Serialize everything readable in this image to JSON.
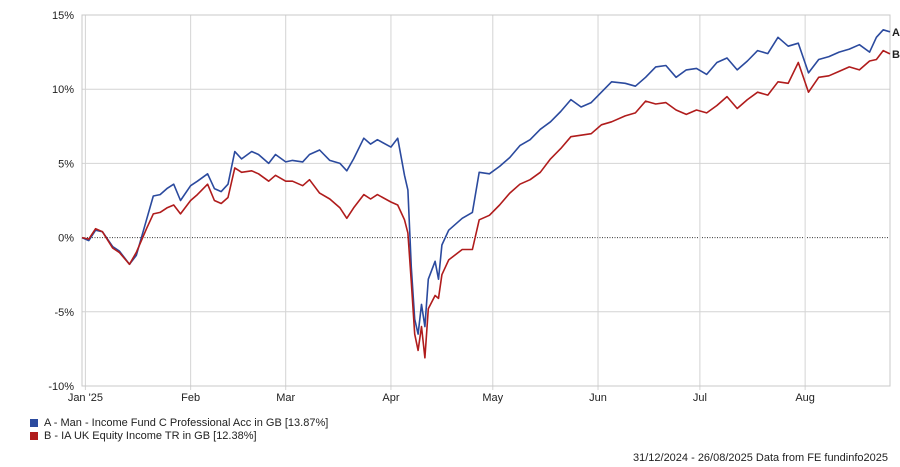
{
  "chart_data": {
    "type": "line",
    "y_ticks": [
      "15%",
      "10%",
      "5%",
      "0%",
      "-5%",
      "-10%"
    ],
    "y_tick_values": [
      15,
      10,
      5,
      0,
      -5,
      -10
    ],
    "ylim": [
      -10,
      15
    ],
    "x_range": [
      "2024-12-31",
      "2025-08-26"
    ],
    "x_ticks": [
      {
        "label": "Jan '25",
        "date": "2025-01-01"
      },
      {
        "label": "Feb",
        "date": "2025-02-01"
      },
      {
        "label": "Mar",
        "date": "2025-03-01"
      },
      {
        "label": "Apr",
        "date": "2025-04-01"
      },
      {
        "label": "May",
        "date": "2025-05-01"
      },
      {
        "label": "Jun",
        "date": "2025-06-01"
      },
      {
        "label": "Jul",
        "date": "2025-07-01"
      },
      {
        "label": "Aug",
        "date": "2025-08-01"
      }
    ],
    "grid": true,
    "zero_line": "dotted",
    "series": [
      {
        "name": "A - Man - Income Fund C Professional Acc in GB [13.87%]",
        "marker": "A",
        "color": "#2b4a9e",
        "points": [
          [
            "2024-12-31",
            0.0
          ],
          [
            "2025-01-02",
            -0.2
          ],
          [
            "2025-01-04",
            0.5
          ],
          [
            "2025-01-06",
            0.4
          ],
          [
            "2025-01-09",
            -0.6
          ],
          [
            "2025-01-11",
            -0.9
          ],
          [
            "2025-01-14",
            -1.8
          ],
          [
            "2025-01-16",
            -1.2
          ],
          [
            "2025-01-19",
            1.2
          ],
          [
            "2025-01-21",
            2.8
          ],
          [
            "2025-01-23",
            2.9
          ],
          [
            "2025-01-25",
            3.3
          ],
          [
            "2025-01-27",
            3.6
          ],
          [
            "2025-01-29",
            2.5
          ],
          [
            "2025-02-01",
            3.5
          ],
          [
            "2025-02-03",
            3.8
          ],
          [
            "2025-02-06",
            4.3
          ],
          [
            "2025-02-08",
            3.3
          ],
          [
            "2025-02-10",
            3.1
          ],
          [
            "2025-02-12",
            3.6
          ],
          [
            "2025-02-14",
            5.8
          ],
          [
            "2025-02-16",
            5.3
          ],
          [
            "2025-02-19",
            5.8
          ],
          [
            "2025-02-21",
            5.6
          ],
          [
            "2025-02-24",
            5.0
          ],
          [
            "2025-02-26",
            5.6
          ],
          [
            "2025-03-01",
            5.1
          ],
          [
            "2025-03-03",
            5.2
          ],
          [
            "2025-03-06",
            5.1
          ],
          [
            "2025-03-08",
            5.6
          ],
          [
            "2025-03-11",
            5.9
          ],
          [
            "2025-03-14",
            5.2
          ],
          [
            "2025-03-17",
            5.0
          ],
          [
            "2025-03-19",
            4.5
          ],
          [
            "2025-03-21",
            5.3
          ],
          [
            "2025-03-24",
            6.7
          ],
          [
            "2025-03-26",
            6.3
          ],
          [
            "2025-03-28",
            6.6
          ],
          [
            "2025-04-01",
            6.1
          ],
          [
            "2025-04-03",
            6.7
          ],
          [
            "2025-04-05",
            4.2
          ],
          [
            "2025-04-06",
            3.2
          ],
          [
            "2025-04-07",
            -2.0
          ],
          [
            "2025-04-08",
            -5.5
          ],
          [
            "2025-04-09",
            -6.5
          ],
          [
            "2025-04-10",
            -4.5
          ],
          [
            "2025-04-11",
            -6.0
          ],
          [
            "2025-04-12",
            -2.8
          ],
          [
            "2025-04-14",
            -1.6
          ],
          [
            "2025-04-15",
            -2.8
          ],
          [
            "2025-04-16",
            -0.5
          ],
          [
            "2025-04-18",
            0.5
          ],
          [
            "2025-04-22",
            1.3
          ],
          [
            "2025-04-25",
            1.7
          ],
          [
            "2025-04-27",
            4.4
          ],
          [
            "2025-04-30",
            4.3
          ],
          [
            "2025-05-03",
            4.8
          ],
          [
            "2025-05-06",
            5.4
          ],
          [
            "2025-05-09",
            6.2
          ],
          [
            "2025-05-12",
            6.6
          ],
          [
            "2025-05-15",
            7.3
          ],
          [
            "2025-05-18",
            7.8
          ],
          [
            "2025-05-21",
            8.5
          ],
          [
            "2025-05-24",
            9.3
          ],
          [
            "2025-05-27",
            8.8
          ],
          [
            "2025-05-30",
            9.1
          ],
          [
            "2025-06-02",
            9.8
          ],
          [
            "2025-06-05",
            10.5
          ],
          [
            "2025-06-09",
            10.4
          ],
          [
            "2025-06-12",
            10.2
          ],
          [
            "2025-06-15",
            10.8
          ],
          [
            "2025-06-18",
            11.5
          ],
          [
            "2025-06-21",
            11.6
          ],
          [
            "2025-06-24",
            10.8
          ],
          [
            "2025-06-27",
            11.3
          ],
          [
            "2025-06-30",
            11.4
          ],
          [
            "2025-07-03",
            11.0
          ],
          [
            "2025-07-06",
            11.8
          ],
          [
            "2025-07-09",
            12.1
          ],
          [
            "2025-07-12",
            11.3
          ],
          [
            "2025-07-15",
            11.9
          ],
          [
            "2025-07-18",
            12.6
          ],
          [
            "2025-07-21",
            12.4
          ],
          [
            "2025-07-24",
            13.5
          ],
          [
            "2025-07-27",
            12.9
          ],
          [
            "2025-07-30",
            13.1
          ],
          [
            "2025-08-02",
            11.1
          ],
          [
            "2025-08-05",
            12.0
          ],
          [
            "2025-08-08",
            12.2
          ],
          [
            "2025-08-11",
            12.5
          ],
          [
            "2025-08-14",
            12.7
          ],
          [
            "2025-08-17",
            13.0
          ],
          [
            "2025-08-20",
            12.5
          ],
          [
            "2025-08-22",
            13.5
          ],
          [
            "2025-08-24",
            14.0
          ],
          [
            "2025-08-26",
            13.87
          ]
        ]
      },
      {
        "name": "B - IA UK Equity Income TR in GB [12.38%]",
        "marker": "B",
        "color": "#b01c1c",
        "points": [
          [
            "2024-12-31",
            0.0
          ],
          [
            "2025-01-02",
            -0.1
          ],
          [
            "2025-01-04",
            0.6
          ],
          [
            "2025-01-06",
            0.4
          ],
          [
            "2025-01-09",
            -0.7
          ],
          [
            "2025-01-11",
            -1.0
          ],
          [
            "2025-01-14",
            -1.8
          ],
          [
            "2025-01-16",
            -1.0
          ],
          [
            "2025-01-19",
            0.6
          ],
          [
            "2025-01-21",
            1.6
          ],
          [
            "2025-01-23",
            1.7
          ],
          [
            "2025-01-25",
            2.0
          ],
          [
            "2025-01-27",
            2.2
          ],
          [
            "2025-01-29",
            1.6
          ],
          [
            "2025-02-01",
            2.5
          ],
          [
            "2025-02-03",
            2.9
          ],
          [
            "2025-02-06",
            3.6
          ],
          [
            "2025-02-08",
            2.5
          ],
          [
            "2025-02-10",
            2.3
          ],
          [
            "2025-02-12",
            2.7
          ],
          [
            "2025-02-14",
            4.7
          ],
          [
            "2025-02-16",
            4.4
          ],
          [
            "2025-02-19",
            4.5
          ],
          [
            "2025-02-21",
            4.3
          ],
          [
            "2025-02-24",
            3.8
          ],
          [
            "2025-02-26",
            4.2
          ],
          [
            "2025-03-01",
            3.8
          ],
          [
            "2025-03-03",
            3.8
          ],
          [
            "2025-03-06",
            3.5
          ],
          [
            "2025-03-08",
            3.9
          ],
          [
            "2025-03-11",
            3.0
          ],
          [
            "2025-03-14",
            2.6
          ],
          [
            "2025-03-17",
            2.0
          ],
          [
            "2025-03-19",
            1.3
          ],
          [
            "2025-03-21",
            2.0
          ],
          [
            "2025-03-24",
            2.9
          ],
          [
            "2025-03-26",
            2.6
          ],
          [
            "2025-03-28",
            2.9
          ],
          [
            "2025-04-01",
            2.4
          ],
          [
            "2025-04-03",
            2.2
          ],
          [
            "2025-04-05",
            1.2
          ],
          [
            "2025-04-06",
            0.3
          ],
          [
            "2025-04-07",
            -3.0
          ],
          [
            "2025-04-08",
            -6.5
          ],
          [
            "2025-04-09",
            -7.6
          ],
          [
            "2025-04-10",
            -6.0
          ],
          [
            "2025-04-11",
            -8.1
          ],
          [
            "2025-04-12",
            -4.8
          ],
          [
            "2025-04-14",
            -3.9
          ],
          [
            "2025-04-15",
            -4.1
          ],
          [
            "2025-04-16",
            -2.5
          ],
          [
            "2025-04-18",
            -1.5
          ],
          [
            "2025-04-22",
            -0.8
          ],
          [
            "2025-04-25",
            -0.8
          ],
          [
            "2025-04-27",
            1.2
          ],
          [
            "2025-04-30",
            1.5
          ],
          [
            "2025-05-03",
            2.2
          ],
          [
            "2025-05-06",
            3.0
          ],
          [
            "2025-05-09",
            3.6
          ],
          [
            "2025-05-12",
            3.9
          ],
          [
            "2025-05-15",
            4.4
          ],
          [
            "2025-05-18",
            5.3
          ],
          [
            "2025-05-21",
            6.0
          ],
          [
            "2025-05-24",
            6.8
          ],
          [
            "2025-05-27",
            6.9
          ],
          [
            "2025-05-30",
            7.0
          ],
          [
            "2025-06-02",
            7.6
          ],
          [
            "2025-06-05",
            7.8
          ],
          [
            "2025-06-09",
            8.2
          ],
          [
            "2025-06-12",
            8.4
          ],
          [
            "2025-06-15",
            9.2
          ],
          [
            "2025-06-18",
            9.0
          ],
          [
            "2025-06-21",
            9.1
          ],
          [
            "2025-06-24",
            8.6
          ],
          [
            "2025-06-27",
            8.3
          ],
          [
            "2025-06-30",
            8.6
          ],
          [
            "2025-07-03",
            8.4
          ],
          [
            "2025-07-06",
            8.9
          ],
          [
            "2025-07-09",
            9.5
          ],
          [
            "2025-07-12",
            8.7
          ],
          [
            "2025-07-15",
            9.3
          ],
          [
            "2025-07-18",
            9.8
          ],
          [
            "2025-07-21",
            9.6
          ],
          [
            "2025-07-24",
            10.5
          ],
          [
            "2025-07-27",
            10.4
          ],
          [
            "2025-07-30",
            11.8
          ],
          [
            "2025-08-02",
            9.8
          ],
          [
            "2025-08-05",
            10.8
          ],
          [
            "2025-08-08",
            10.9
          ],
          [
            "2025-08-11",
            11.2
          ],
          [
            "2025-08-14",
            11.5
          ],
          [
            "2025-08-17",
            11.3
          ],
          [
            "2025-08-20",
            11.9
          ],
          [
            "2025-08-22",
            12.0
          ],
          [
            "2025-08-24",
            12.6
          ],
          [
            "2025-08-26",
            12.38
          ]
        ]
      }
    ]
  },
  "legend": {
    "items": [
      {
        "label": "A - Man - Income Fund C Professional Acc in GB [13.87%]",
        "color": "#2b4a9e"
      },
      {
        "label": "B - IA UK Equity Income TR in GB [12.38%]",
        "color": "#b01c1c"
      }
    ]
  },
  "footer": {
    "text": "31/12/2024 - 26/08/2025 Data from FE fundinfo2025"
  }
}
